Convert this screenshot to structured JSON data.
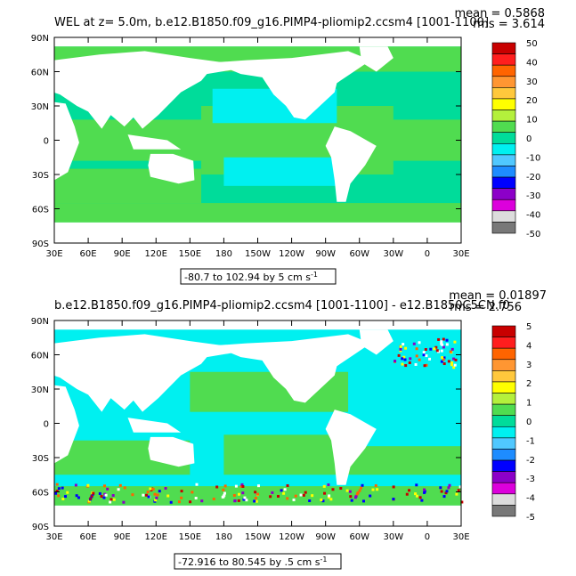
{
  "panels": [
    {
      "title": "WEL at z=    5.0m, b.e12.B1850.f09_g16.PIMP4-pliomip2.ccsm4 [1001-1100]",
      "mean": "mean = 0.5868",
      "rms": "rms = 3.614",
      "range_label": "-80.7 to 102.94 by 5 cm s",
      "range_unit_exp": "-1",
      "colorbar_ticks": [
        "50",
        "40",
        "30",
        "20",
        "10",
        "0",
        "-10",
        "-20",
        "-30",
        "-40",
        "-50"
      ]
    },
    {
      "title": "b.e12.B1850.f09_g16.PIMP4-pliomip2.ccsm4 [1001-1100] - e12.B1850C5CN.f0",
      "mean": "mean = 0.01897",
      "rms": "rms = 2.756",
      "range_label": "-72.916 to 80.545 by .5 cm s",
      "range_unit_exp": "-1",
      "colorbar_ticks": [
        "5",
        "4",
        "3",
        "2",
        "1",
        "0",
        "-1",
        "-2",
        "-3",
        "-4",
        "-5"
      ]
    }
  ],
  "lat_labels": [
    "90N",
    "60N",
    "30N",
    "0",
    "30S",
    "60S",
    "90S"
  ],
  "lon_labels": [
    "30E",
    "60E",
    "90E",
    "120E",
    "150E",
    "180",
    "150W",
    "120W",
    "90W",
    "60W",
    "30W",
    "0",
    "30E"
  ],
  "colorbar_colors": [
    "#c80000",
    "#ff1e1e",
    "#ff6400",
    "#ff9632",
    "#ffc83c",
    "#ffff00",
    "#b4f03c",
    "#50dc50",
    "#00dc9a",
    "#00f0f0",
    "#50c8ff",
    "#1e8cff",
    "#0000ff",
    "#8c00c8",
    "#dc00dc",
    "#dcdcdc",
    "#787878"
  ],
  "colors": {
    "ocean_main": "#50dc50",
    "ocean_cyan": "#00f0f0",
    "ocean_teal": "#00dc9a",
    "land": "#ffffff"
  }
}
